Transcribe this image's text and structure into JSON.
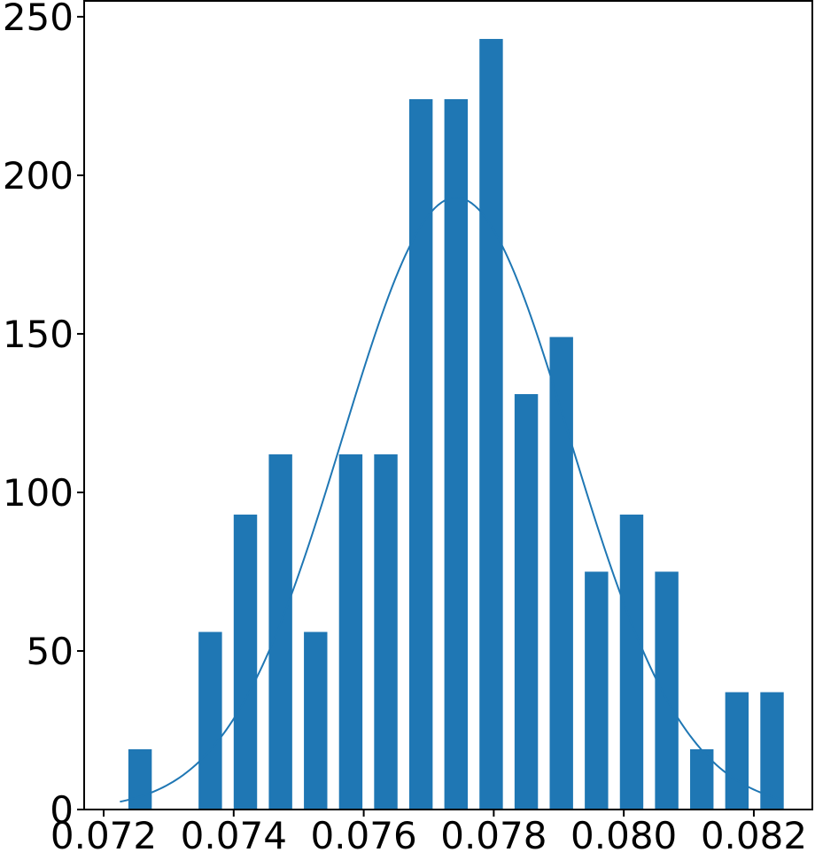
{
  "chart_data": {
    "type": "bar",
    "title": "",
    "xlabel": "",
    "ylabel": "",
    "xlim": [
      0.0717,
      0.0829
    ],
    "ylim": [
      0,
      255
    ],
    "grid": false,
    "legend": "none",
    "bar_width": 0.00036,
    "bar_color": "#1f77b4",
    "curve_color": "#1f77b4",
    "x_ticks": [
      0.072,
      0.074,
      0.076,
      0.078,
      0.08,
      0.082
    ],
    "x_tick_labels": [
      "0.072",
      "0.074",
      "0.076",
      "0.078",
      "0.080",
      "0.082"
    ],
    "y_ticks": [
      0,
      50,
      100,
      150,
      200,
      250
    ],
    "y_tick_labels": [
      "0",
      "50",
      "100",
      "150",
      "200",
      "250"
    ],
    "bars": [
      {
        "x": 0.07256,
        "value": 19
      },
      {
        "x": 0.0731,
        "value": 0
      },
      {
        "x": 0.07364,
        "value": 56
      },
      {
        "x": 0.07418,
        "value": 93
      },
      {
        "x": 0.07472,
        "value": 112
      },
      {
        "x": 0.07526,
        "value": 56
      },
      {
        "x": 0.0758,
        "value": 112
      },
      {
        "x": 0.07634,
        "value": 112
      },
      {
        "x": 0.07688,
        "value": 224
      },
      {
        "x": 0.07742,
        "value": 224
      },
      {
        "x": 0.07796,
        "value": 243
      },
      {
        "x": 0.0785,
        "value": 131
      },
      {
        "x": 0.07904,
        "value": 149
      },
      {
        "x": 0.07958,
        "value": 75
      },
      {
        "x": 0.08012,
        "value": 93
      },
      {
        "x": 0.08066,
        "value": 75
      },
      {
        "x": 0.0812,
        "value": 19
      },
      {
        "x": 0.08174,
        "value": 37
      },
      {
        "x": 0.08228,
        "value": 37
      }
    ],
    "curve": {
      "type": "gaussian",
      "peak": 193,
      "mean": 0.07742,
      "sd": 0.00175,
      "x_range": [
        0.07225,
        0.08245
      ]
    }
  }
}
